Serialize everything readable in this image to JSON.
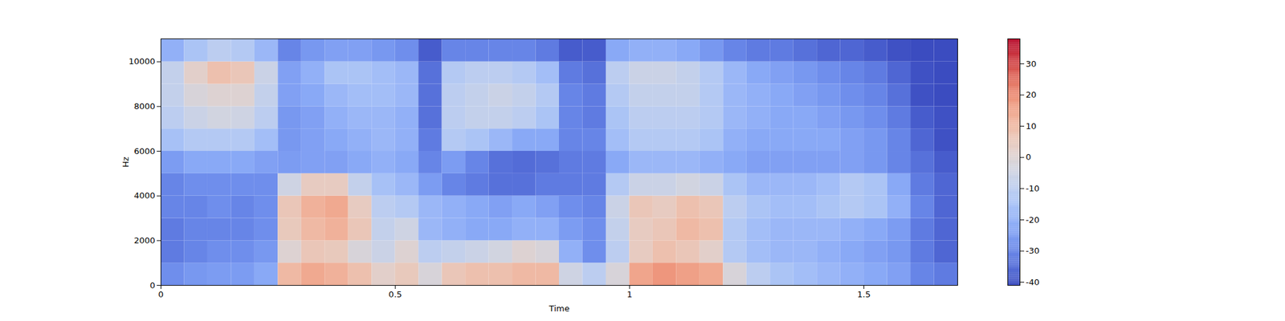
{
  "chart_data": {
    "type": "heatmap",
    "x_label": "Time",
    "y_label": "Hz",
    "x": [
      0,
      0.05,
      0.1,
      0.15,
      0.2,
      0.25,
      0.3,
      0.35,
      0.4,
      0.45,
      0.5,
      0.55,
      0.6,
      0.65,
      0.7,
      0.75,
      0.8,
      0.85,
      0.9,
      0.95,
      1.0,
      1.05,
      1.1,
      1.15,
      1.2,
      1.25,
      1.3,
      1.35,
      1.4,
      1.45,
      1.5,
      1.55,
      1.6,
      1.65,
      1.7
    ],
    "y": [
      0,
      1000,
      2000,
      3000,
      4000,
      5000,
      6000,
      7000,
      8000,
      9000,
      10000,
      11025
    ],
    "values": [
      [
        -28,
        -26,
        -25,
        -25,
        -22,
        10,
        14,
        12,
        8,
        2,
        5,
        -2,
        6,
        8,
        8,
        10,
        10,
        -5,
        -10,
        -2,
        15,
        18,
        16,
        14,
        -2,
        -10,
        -14,
        -16,
        -18,
        -20,
        -22,
        -24,
        -30,
        -32
      ],
      [
        -32,
        -30,
        -28,
        -28,
        -26,
        0,
        6,
        5,
        -2,
        -6,
        0,
        -10,
        -8,
        -6,
        -4,
        0,
        -2,
        -20,
        -28,
        -10,
        4,
        8,
        6,
        2,
        -12,
        -16,
        -18,
        -18,
        -20,
        -22,
        -24,
        -26,
        -32,
        -36
      ],
      [
        -32,
        -30,
        -30,
        -30,
        -28,
        5,
        10,
        12,
        6,
        -8,
        -5,
        -18,
        -20,
        -22,
        -22,
        -20,
        -20,
        -25,
        -28,
        -8,
        4,
        6,
        10,
        8,
        -12,
        -16,
        -18,
        -18,
        -18,
        -20,
        -22,
        -25,
        -32,
        -36
      ],
      [
        -30,
        -30,
        -28,
        -30,
        -28,
        6,
        12,
        14,
        4,
        -10,
        -12,
        -18,
        -20,
        -22,
        -24,
        -22,
        -24,
        -28,
        -30,
        -6,
        6,
        4,
        8,
        6,
        -10,
        -14,
        -16,
        -16,
        -14,
        -12,
        -14,
        -20,
        -30,
        -36
      ],
      [
        -30,
        -28,
        -28,
        -28,
        -28,
        -5,
        4,
        4,
        -8,
        -15,
        -18,
        -25,
        -30,
        -32,
        -34,
        -34,
        -32,
        -32,
        -32,
        -12,
        -6,
        -6,
        -4,
        -6,
        -14,
        -18,
        -18,
        -18,
        -16,
        -12,
        -14,
        -22,
        -32,
        -36
      ],
      [
        -25,
        -22,
        -22,
        -22,
        -24,
        -25,
        -24,
        -24,
        -22,
        -20,
        -22,
        -30,
        -25,
        -30,
        -34,
        -35,
        -34,
        -32,
        -32,
        -22,
        -18,
        -18,
        -18,
        -20,
        -22,
        -24,
        -24,
        -24,
        -24,
        -24,
        -26,
        -30,
        -34,
        -38
      ],
      [
        -15,
        -12,
        -12,
        -12,
        -16,
        -26,
        -24,
        -22,
        -20,
        -18,
        -20,
        -32,
        -12,
        -14,
        -18,
        -22,
        -22,
        -30,
        -30,
        -16,
        -12,
        -12,
        -12,
        -14,
        -20,
        -22,
        -22,
        -22,
        -22,
        -24,
        -26,
        -30,
        -36,
        -40
      ],
      [
        -10,
        -6,
        -4,
        -5,
        -10,
        -26,
        -24,
        -20,
        -18,
        -18,
        -20,
        -34,
        -10,
        -8,
        -8,
        -10,
        -14,
        -30,
        -32,
        -14,
        -10,
        -10,
        -10,
        -12,
        -18,
        -20,
        -22,
        -22,
        -24,
        -26,
        -28,
        -32,
        -38,
        -40
      ],
      [
        -8,
        -2,
        0,
        0,
        -8,
        -24,
        -22,
        -18,
        -16,
        -16,
        -18,
        -34,
        -10,
        -8,
        -6,
        -8,
        -12,
        -30,
        -32,
        -12,
        -8,
        -8,
        -8,
        -12,
        -18,
        -20,
        -22,
        -24,
        -26,
        -28,
        -30,
        -34,
        -40,
        -41
      ],
      [
        -8,
        2,
        8,
        6,
        -6,
        -24,
        -20,
        -14,
        -14,
        -16,
        -18,
        -34,
        -12,
        -10,
        -10,
        -12,
        -16,
        -32,
        -34,
        -10,
        -6,
        -6,
        -8,
        -12,
        -18,
        -22,
        -24,
        -26,
        -28,
        -30,
        -32,
        -36,
        -40,
        -41
      ],
      [
        -20,
        -14,
        -10,
        -12,
        -18,
        -30,
        -26,
        -24,
        -24,
        -26,
        -28,
        -38,
        -30,
        -30,
        -30,
        -30,
        -32,
        -38,
        -38,
        -22,
        -20,
        -20,
        -22,
        -26,
        -30,
        -32,
        -32,
        -34,
        -36,
        -36,
        -38,
        -40,
        -41,
        -41
      ]
    ],
    "xlim": [
      0,
      1.7
    ],
    "xticks": [
      0,
      0.5,
      1,
      1.5
    ],
    "ylim": [
      0,
      11025
    ],
    "yticks": [
      0,
      2000,
      4000,
      6000,
      8000,
      10000
    ],
    "colorbar": {
      "range": [
        -41,
        38
      ],
      "ticks": [
        -40,
        -30,
        -20,
        -10,
        0,
        10,
        20,
        30
      ]
    }
  }
}
